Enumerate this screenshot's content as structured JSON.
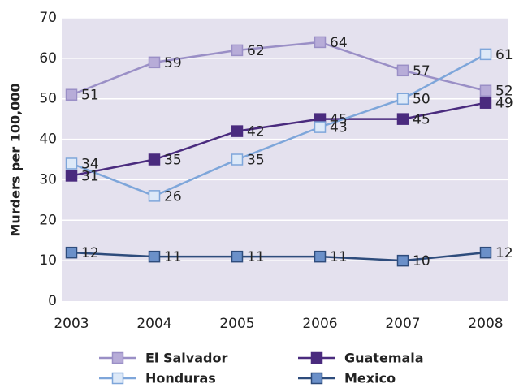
{
  "chart_data": {
    "type": "line",
    "y_label": "Murders per 100,000",
    "categories": [
      "2003",
      "2004",
      "2005",
      "2006",
      "2007",
      "2008"
    ],
    "series": [
      {
        "name": "El Salvador",
        "color": "#9a8fc6",
        "marker_color": "#b7acd8",
        "values": [
          51,
          59,
          62,
          64,
          57,
          52
        ]
      },
      {
        "name": "Guatemala",
        "color": "#4a2b7e",
        "marker_color": "#4a2b7e",
        "values": [
          31,
          35,
          42,
          45,
          45,
          49
        ]
      },
      {
        "name": "Honduras",
        "color": "#7ea6da",
        "marker_color": "#dde9f8",
        "values": [
          34,
          26,
          35,
          43,
          50,
          61
        ]
      },
      {
        "name": "Mexico",
        "color": "#2e4c7c",
        "marker_color": "#6b90c9",
        "values": [
          12,
          11,
          11,
          11,
          10,
          12
        ]
      }
    ],
    "ylim": [
      0,
      70
    ],
    "yticks": [
      0,
      10,
      20,
      30,
      40,
      50,
      60,
      70
    ],
    "grid": true,
    "legend": "bottom"
  }
}
